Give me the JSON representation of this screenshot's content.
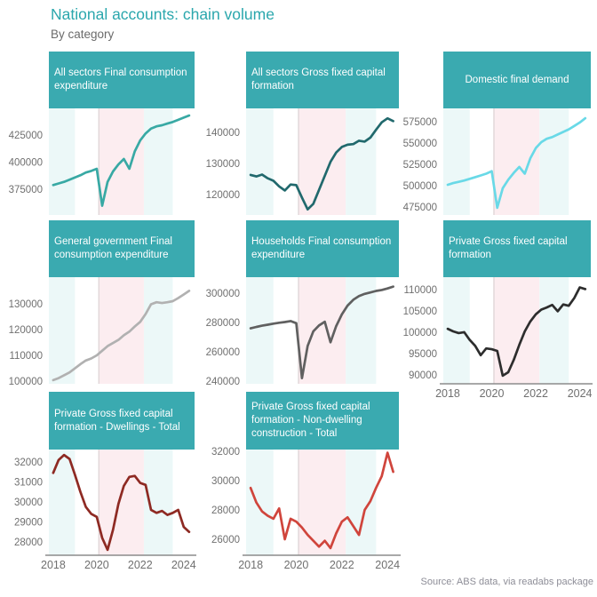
{
  "title": "National accounts: chain volume",
  "subtitle": "By category",
  "source": "Source: ABS data, via readabs package",
  "colors": {
    "title": "#2ba7ad",
    "subtitle": "#6b6b6b",
    "header_bg": "#3aaab0",
    "band_teal": "#ecf8f8",
    "band_pink": "#fcedf0",
    "band_edge": "#e2d8da",
    "axis_line": "#8c8c8c",
    "tick_text": "#6f6f6f",
    "source_text": "#8d8d97"
  },
  "chart_data": {
    "type": "line",
    "x_unit": "quarterly, years",
    "x_domain": [
      2017.8,
      2024.5
    ],
    "x_ticks": [
      2018,
      2020,
      2022,
      2024
    ],
    "grid": "off",
    "legend": "none",
    "bands": [
      {
        "from": 2017.8,
        "to": 2019.0,
        "color": "#ecf8f8"
      },
      {
        "from": 2020.1,
        "to": 2022.17,
        "color": "#fcedf0"
      },
      {
        "from": 2022.17,
        "to": 2023.5,
        "color": "#ecf8f8"
      }
    ],
    "band_edge_x": 2020.1,
    "panels": [
      {
        "title": "All sectors Final consumption expenditure",
        "row": 0,
        "col": 0,
        "line_color": "#38a9a4",
        "y_domain": [
          351500,
          449500
        ],
        "y_ticks": [
          375000,
          400000,
          425000
        ],
        "x_start": 2018,
        "x_step": 0.25,
        "show_x_axis": false,
        "values": [
          379000,
          380500,
          382000,
          384000,
          386000,
          388000,
          390500,
          392000,
          394000,
          360000,
          382000,
          391500,
          398000,
          403000,
          394000,
          410000,
          420000,
          426500,
          431000,
          433000,
          434000,
          435500,
          437000,
          439000,
          441000,
          443000
        ]
      },
      {
        "title": "All sectors Gross fixed capital formation",
        "row": 0,
        "col": 1,
        "line_color": "#21696d",
        "y_domain": [
          113400,
          147700
        ],
        "y_ticks": [
          120000,
          130000,
          140000
        ],
        "x_start": 2018,
        "x_step": 0.25,
        "show_x_axis": false,
        "values": [
          126300,
          125800,
          126400,
          125200,
          124400,
          122600,
          121300,
          123200,
          123000,
          119000,
          115200,
          117000,
          121500,
          126000,
          130500,
          133500,
          135300,
          136000,
          136200,
          137300,
          137000,
          138300,
          140800,
          143200,
          144500,
          143600
        ]
      },
      {
        "title": "Domestic final demand",
        "row": 0,
        "col": 2,
        "line_color": "#69d9e7",
        "y_domain": [
          465600,
          590600
        ],
        "y_ticks": [
          475000,
          500000,
          525000,
          550000,
          575000
        ],
        "x_start": 2018,
        "x_step": 0.25,
        "show_x_axis": false,
        "values": [
          501000,
          503000,
          504500,
          506000,
          508000,
          510000,
          512000,
          514000,
          517000,
          474000,
          497000,
          507000,
          515000,
          522000,
          514000,
          532000,
          544000,
          551000,
          555000,
          557000,
          560000,
          563000,
          566000,
          570000,
          574000,
          579000
        ]
      },
      {
        "title": "General government Final consumption expenditure",
        "row": 1,
        "col": 0,
        "line_color": "#b1b1b1",
        "y_domain": [
          99000,
          140300
        ],
        "y_ticks": [
          100000,
          110000,
          120000,
          130000
        ],
        "x_start": 2018,
        "x_step": 0.25,
        "show_x_axis": false,
        "values": [
          100400,
          101200,
          102300,
          103400,
          105000,
          106600,
          108000,
          108800,
          110000,
          111800,
          113600,
          114800,
          116000,
          117800,
          119200,
          121200,
          123000,
          126000,
          129800,
          130600,
          130300,
          130600,
          131000,
          132200,
          133600,
          135000
        ]
      },
      {
        "title": "Households Final consumption expenditure",
        "row": 1,
        "col": 1,
        "line_color": "#606060",
        "y_domain": [
          238200,
          310900
        ],
        "y_ticks": [
          240000,
          260000,
          280000,
          300000
        ],
        "x_start": 2018,
        "x_step": 0.25,
        "show_x_axis": false,
        "values": [
          276000,
          277000,
          277800,
          278500,
          279200,
          279800,
          280300,
          281000,
          279500,
          242000,
          264000,
          274000,
          278000,
          280500,
          266500,
          277500,
          285500,
          291500,
          295500,
          298000,
          299500,
          300500,
          301500,
          302200,
          303200,
          304500
        ]
      },
      {
        "title": "Private Gross fixed capital formation",
        "row": 1,
        "col": 2,
        "line_color": "#2d2d2d",
        "y_domain": [
          87900,
          112900
        ],
        "y_ticks": [
          90000,
          95000,
          100000,
          105000,
          110000
        ],
        "x_start": 2018,
        "x_step": 0.25,
        "show_x_axis": true,
        "values": [
          100800,
          100200,
          99800,
          100000,
          98200,
          96800,
          94600,
          96200,
          96000,
          95600,
          89800,
          90600,
          93500,
          97000,
          100200,
          102500,
          104200,
          105300,
          105800,
          106400,
          104900,
          106500,
          106200,
          108000,
          110500,
          110100
        ]
      },
      {
        "title": "Private Gross fixed capital formation - Dwellings - Total",
        "row": 2,
        "col": 0,
        "line_color": "#8e2a23",
        "y_domain": [
          27330,
          32620
        ],
        "y_ticks": [
          28000,
          29000,
          30000,
          31000,
          32000
        ],
        "x_start": 2018,
        "x_step": 0.25,
        "show_x_axis": true,
        "values": [
          31450,
          32100,
          32350,
          32150,
          31350,
          30500,
          29750,
          29400,
          29250,
          28200,
          27600,
          28600,
          29900,
          30800,
          31250,
          31300,
          30950,
          30850,
          29600,
          29450,
          29550,
          29350,
          29450,
          29600,
          28750,
          28500
        ]
      },
      {
        "title": "Private Gross fixed capital formation - Non-dwelling construction - Total",
        "row": 2,
        "col": 1,
        "line_color": "#d0453c",
        "y_domain": [
          24910,
          32120
        ],
        "y_ticks": [
          26000,
          28000,
          30000,
          32000
        ],
        "x_start": 2018,
        "x_step": 0.25,
        "show_x_axis": true,
        "values": [
          29500,
          28500,
          27900,
          27600,
          27400,
          28100,
          26000,
          27400,
          27200,
          26800,
          26300,
          25900,
          25500,
          25900,
          25400,
          26400,
          27200,
          27500,
          26900,
          26300,
          28000,
          28600,
          29500,
          30300,
          31900,
          30600
        ]
      }
    ]
  }
}
